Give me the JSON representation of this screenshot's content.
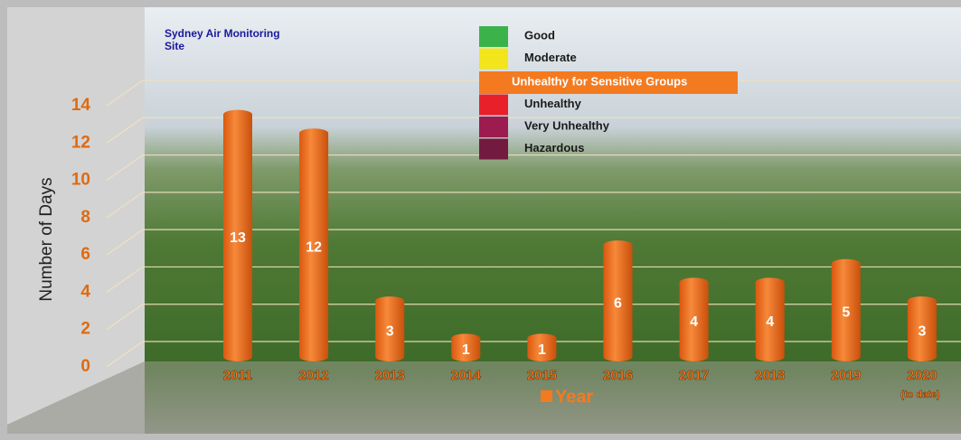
{
  "chart_data": {
    "type": "bar",
    "title": "Sydney Air Monitoring Site",
    "ylabel": "Number of Days",
    "xlabel": "Year",
    "categories": [
      "2011",
      "2012",
      "2013",
      "2014",
      "2015",
      "2016",
      "2017",
      "2018",
      "2019",
      "2020"
    ],
    "annotation": "(to date)",
    "values": [
      13,
      12,
      3,
      1,
      1,
      6,
      4,
      4,
      5,
      3
    ],
    "color": "#f47a20",
    "ylim": [
      0,
      14
    ],
    "yticks": [
      0,
      2,
      4,
      6,
      8,
      10,
      12,
      14
    ],
    "grid": true,
    "legend": [
      {
        "name": "Good",
        "color": "#3cb34a"
      },
      {
        "name": "Moderate",
        "color": "#f2e51c"
      },
      {
        "name": "Unhealthy for Sensitive Groups",
        "color": "#f47a20"
      },
      {
        "name": "Unhealthy",
        "color": "#e8202a"
      },
      {
        "name": "Very Unhealthy",
        "color": "#9c1c4f"
      },
      {
        "name": "Hazardous",
        "color": "#731a3f"
      }
    ],
    "legend_highlight": 2
  }
}
